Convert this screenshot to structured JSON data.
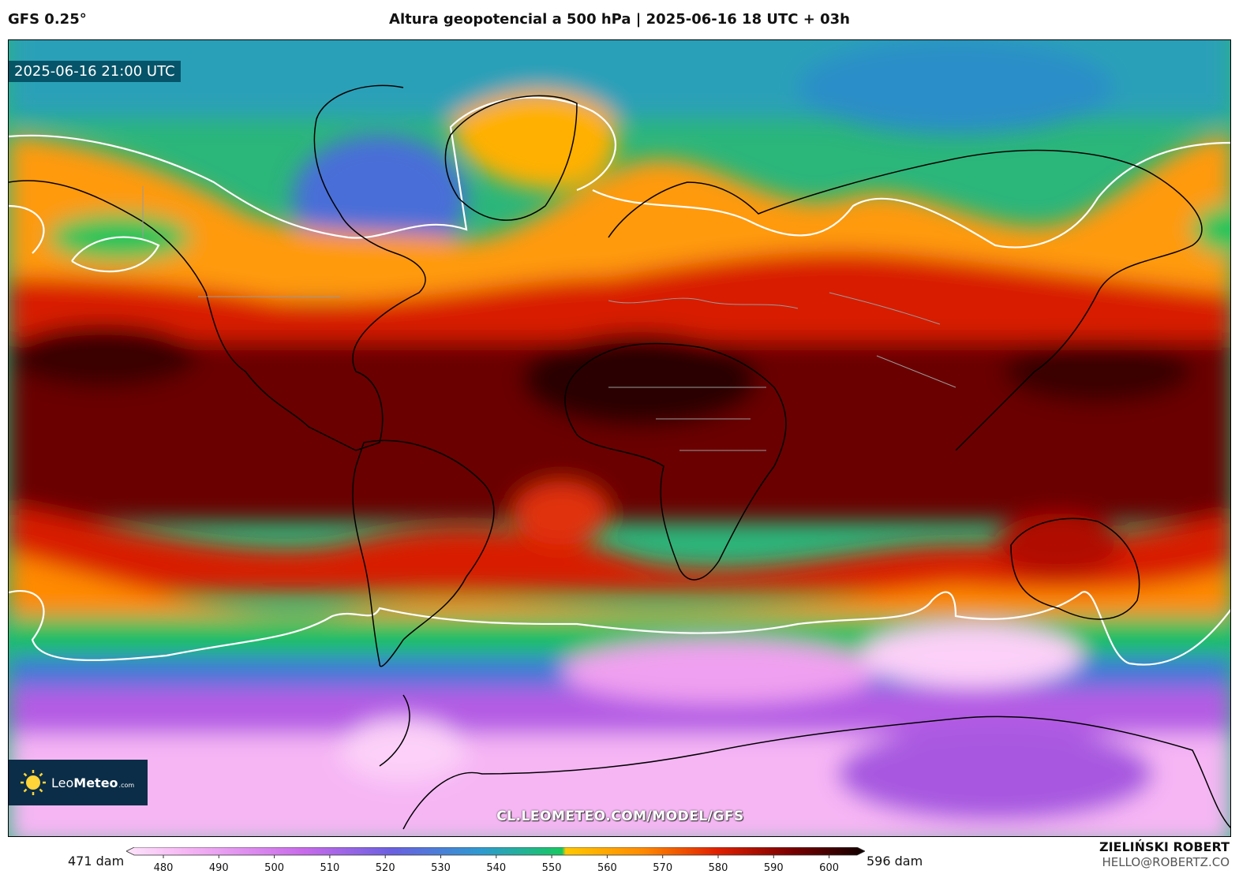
{
  "header": {
    "model": "GFS 0.25°",
    "title": "Altura geopotencial a 500 hPa | 2025-06-16 18 UTC + 03h"
  },
  "map": {
    "valid_time": "2025-06-16 21:00 UTC",
    "watermark": "CL.LEOMETEO.COM/MODEL/GFS",
    "logo": {
      "name_light": "Leo",
      "name_bold": "Meteo",
      "suffix": ".com"
    }
  },
  "footer": {
    "min_label": "471 dam",
    "max_label": "596 dam",
    "author": "ZIELIŃSKI ROBERT",
    "contact": "HELLO@ROBERTZ.CO"
  },
  "colorbar": {
    "ticks": [
      "480",
      "490",
      "500",
      "510",
      "520",
      "530",
      "540",
      "550",
      "560",
      "570",
      "580",
      "590",
      "600"
    ],
    "colors": [
      "#fcd0f8",
      "#f0a8f0",
      "#d47ae8",
      "#a45ce4",
      "#6a60e0",
      "#3c8ad8",
      "#1bb0a0",
      "#18c850",
      "#ffc000",
      "#ff8000",
      "#e02000",
      "#8a0000",
      "#2a0000"
    ]
  },
  "legend_colors": {
    "very_low": "#fcd0f8",
    "low": "#b070e8",
    "mid_low": "#3090d8",
    "mid": "#20c060",
    "mid_high": "#ffb400",
    "high": "#e02000",
    "very_high": "#5a0000"
  }
}
